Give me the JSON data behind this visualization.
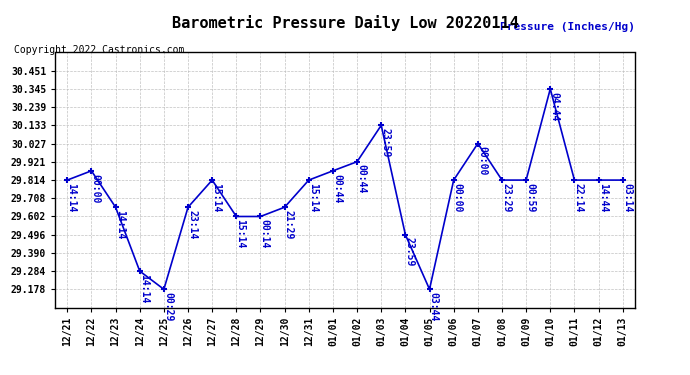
{
  "title": "Barometric Pressure Daily Low 20220114",
  "ylabel": "Pressure (Inches/Hg)",
  "copyright": "Copyright 2022 Castronics.com",
  "line_color": "#0000CC",
  "background_color": "#ffffff",
  "grid_color": "#bbbbbb",
  "dates": [
    "12/21",
    "12/22",
    "12/23",
    "12/24",
    "12/25",
    "12/26",
    "12/27",
    "12/28",
    "12/29",
    "12/30",
    "12/31",
    "01/01",
    "01/02",
    "01/03",
    "01/04",
    "01/05",
    "01/06",
    "01/07",
    "01/08",
    "01/09",
    "01/10",
    "01/11",
    "01/12",
    "01/13"
  ],
  "values": [
    29.814,
    29.868,
    29.656,
    29.284,
    29.178,
    29.656,
    29.814,
    29.602,
    29.602,
    29.656,
    29.814,
    29.868,
    29.921,
    30.133,
    29.496,
    29.178,
    29.814,
    30.027,
    29.814,
    29.814,
    30.345,
    29.814,
    29.814,
    29.814
  ],
  "time_labels": [
    "14:14",
    "00:00",
    "14:14",
    "14:14",
    "00:29",
    "23:14",
    "15:14",
    "15:14",
    "00:14",
    "21:29",
    "15:14",
    "00:44",
    "00:44",
    "23:59",
    "23:59",
    "03:44",
    "00:00",
    "00:00",
    "23:29",
    "00:59",
    "04:44",
    "22:14",
    "14:44",
    "03:14"
  ],
  "ylim_min": 29.072,
  "ylim_max": 30.557,
  "yticks": [
    29.178,
    29.284,
    29.39,
    29.496,
    29.602,
    29.708,
    29.814,
    29.921,
    30.027,
    30.133,
    30.239,
    30.345,
    30.451
  ],
  "title_fontsize": 11,
  "label_fontsize": 7,
  "tick_fontsize": 7,
  "ylabel_fontsize": 8,
  "copyright_fontsize": 7,
  "marker_size": 5,
  "line_width": 1.2
}
